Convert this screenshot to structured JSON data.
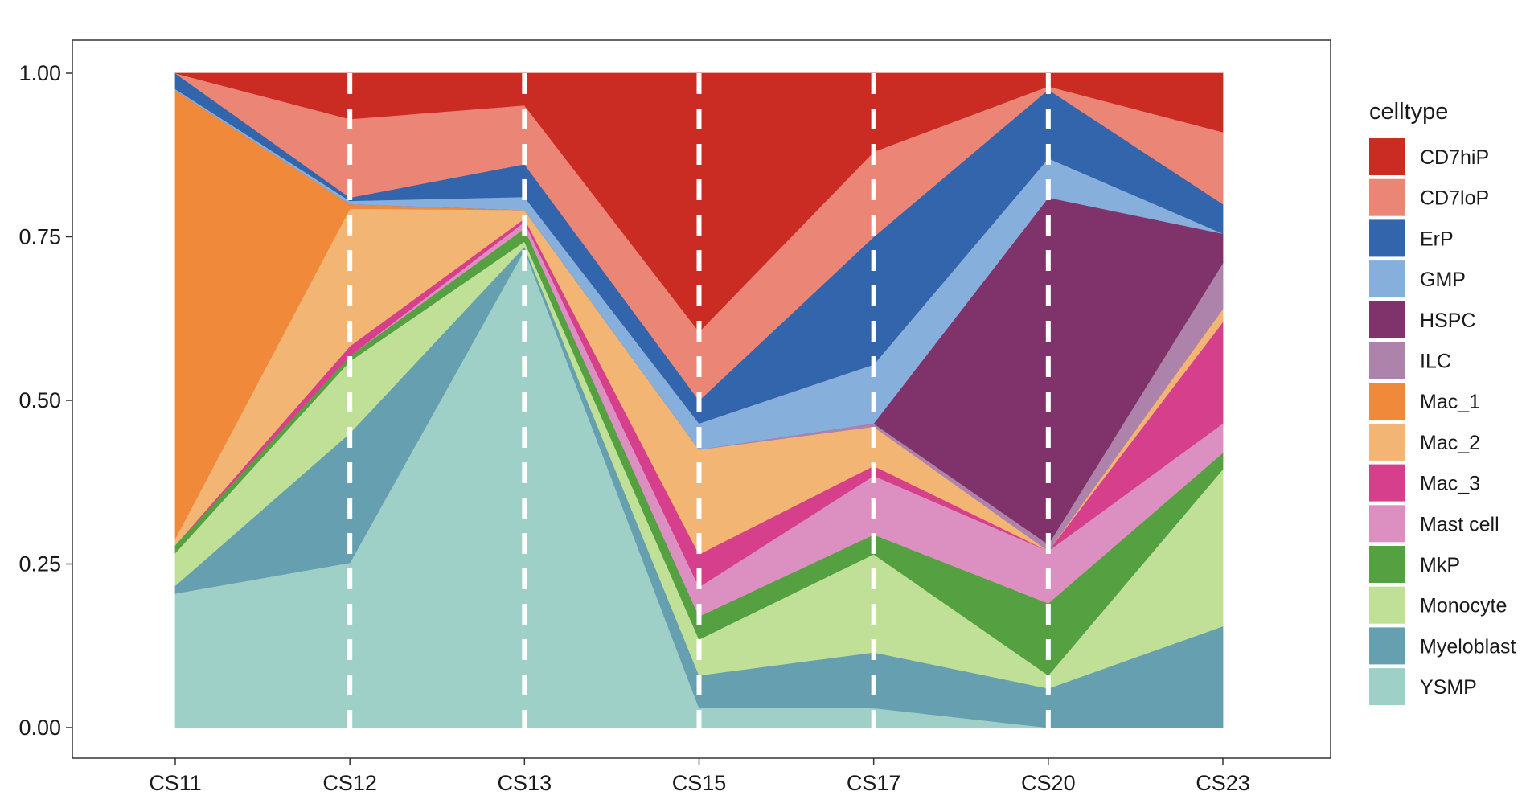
{
  "chart_data": {
    "type": "area",
    "stacked": true,
    "normalized": true,
    "categories": [
      "CS11",
      "CS12",
      "CS13",
      "CS15",
      "CS17",
      "CS20",
      "CS23"
    ],
    "yticks": [
      "0.00",
      "0.25",
      "0.50",
      "0.75",
      "1.00"
    ],
    "ylim": [
      0,
      1
    ],
    "xlabel": "",
    "ylabel": "",
    "title": "",
    "grid": false,
    "vlines_at_categories": true,
    "legend": {
      "title": "celltype",
      "position": "right"
    },
    "series": [
      {
        "name": "YSMP",
        "color": "#9ed0c8",
        "values": [
          0.205,
          0.252,
          0.73,
          0.03,
          0.03,
          0.0,
          0.0
        ]
      },
      {
        "name": "Myeloblast",
        "color": "#66a0b0",
        "values": [
          0.012,
          0.198,
          0.005,
          0.05,
          0.085,
          0.06,
          0.155
        ]
      },
      {
        "name": "Monocyte",
        "color": "#bfe096",
        "values": [
          0.05,
          0.11,
          0.008,
          0.055,
          0.15,
          0.02,
          0.24
        ]
      },
      {
        "name": "MkP",
        "color": "#55a040",
        "values": [
          0.012,
          0.008,
          0.02,
          0.035,
          0.03,
          0.11,
          0.025
        ]
      },
      {
        "name": "Mast cell",
        "color": "#dc90c2",
        "values": [
          0.0,
          0.0,
          0.01,
          0.045,
          0.09,
          0.08,
          0.045
        ]
      },
      {
        "name": "Mac_3",
        "color": "#d63f8c",
        "values": [
          0.0,
          0.015,
          0.005,
          0.05,
          0.015,
          0.0,
          0.155
        ]
      },
      {
        "name": "Mac_2",
        "color": "#f2b573",
        "values": [
          0.01,
          0.21,
          0.013,
          0.16,
          0.06,
          0.0,
          0.02
        ]
      },
      {
        "name": "Mac_1",
        "color": "#f0893a",
        "values": [
          0.685,
          0.007,
          0.0,
          0.0,
          0.0,
          0.0,
          0.0
        ]
      },
      {
        "name": "ILC",
        "color": "#ae83ab",
        "values": [
          0.0,
          0.0,
          0.0,
          0.0,
          0.005,
          0.01,
          0.07
        ]
      },
      {
        "name": "HSPC",
        "color": "#80336b",
        "values": [
          0.0,
          0.0,
          0.0,
          0.0,
          0.0,
          0.53,
          0.045
        ]
      },
      {
        "name": "GMP",
        "color": "#87afdb",
        "values": [
          0.002,
          0.005,
          0.02,
          0.04,
          0.09,
          0.06,
          0.0
        ]
      },
      {
        "name": "ErP",
        "color": "#3265ac",
        "values": [
          0.024,
          0.005,
          0.05,
          0.035,
          0.195,
          0.105,
          0.045
        ]
      },
      {
        "name": "CD7loP",
        "color": "#eb8677",
        "values": [
          0.0,
          0.12,
          0.09,
          0.105,
          0.13,
          0.005,
          0.11
        ]
      },
      {
        "name": "CD7hiP",
        "color": "#ca2c24",
        "values": [
          0.0,
          0.07,
          0.049,
          0.395,
          0.12,
          0.02,
          0.09
        ]
      }
    ],
    "legend_order": [
      "CD7hiP",
      "CD7loP",
      "ErP",
      "GMP",
      "HSPC",
      "ILC",
      "Mac_1",
      "Mac_2",
      "Mac_3",
      "Mast cell",
      "MkP",
      "Monocyte",
      "Myeloblast",
      "YSMP"
    ]
  }
}
